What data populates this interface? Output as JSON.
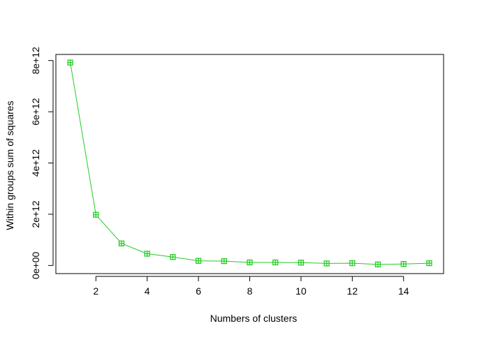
{
  "chart_data": {
    "type": "line",
    "title": "",
    "xlabel": "Numbers of clusters",
    "ylabel": "Within groups sum of squares",
    "x": [
      1,
      2,
      3,
      4,
      5,
      6,
      7,
      8,
      9,
      10,
      11,
      12,
      13,
      14,
      15
    ],
    "series": [
      {
        "values": [
          7920000000000.0,
          1980000000000.0,
          860000000000.0,
          460000000000.0,
          330000000000.0,
          180000000000.0,
          170000000000.0,
          120000000000.0,
          120000000000.0,
          110000000000.0,
          80000000000.0,
          90000000000.0,
          40000000000.0,
          60000000000.0,
          90000000000.0
        ],
        "color": "#22cc22",
        "marker": "square-plus"
      }
    ],
    "xlim": [
      0.44,
      15.56
    ],
    "ylim": [
      -317000000000.0,
      8237000000000.0
    ],
    "x_ticks": [
      2,
      4,
      6,
      8,
      10,
      12,
      14
    ],
    "x_tick_labels": [
      "2",
      "4",
      "6",
      "8",
      "10",
      "12",
      "14"
    ],
    "y_ticks": [
      0,
      2000000000000.0,
      4000000000000.0,
      6000000000000.0,
      8000000000000.0
    ],
    "y_tick_labels": [
      "0e+00",
      "2e+12",
      "4e+12",
      "6e+12",
      "8e+12"
    ],
    "grid": false,
    "legend": "none",
    "box": true
  }
}
